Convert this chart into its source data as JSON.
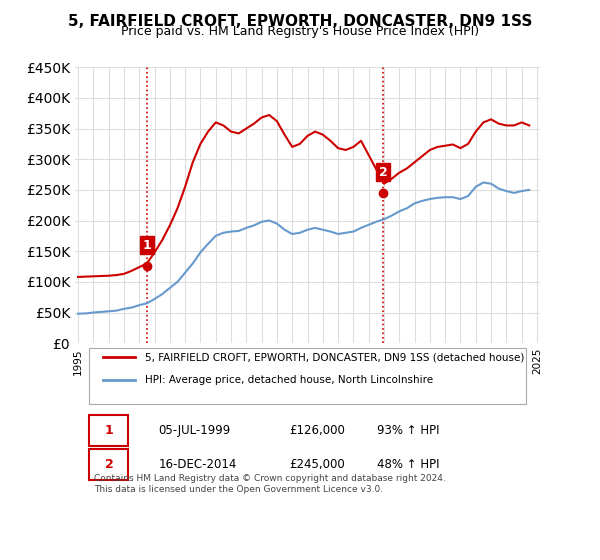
{
  "title": "5, FAIRFIELD CROFT, EPWORTH, DONCASTER, DN9 1SS",
  "subtitle": "Price paid vs. HM Land Registry's House Price Index (HPI)",
  "legend_line1": "5, FAIRFIELD CROFT, EPWORTH, DONCASTER, DN9 1SS (detached house)",
  "legend_line2": "HPI: Average price, detached house, North Lincolnshire",
  "footnote": "Contains HM Land Registry data © Crown copyright and database right 2024.\nThis data is licensed under the Open Government Licence v3.0.",
  "transaction1_label": "1",
  "transaction1_date": "05-JUL-1999",
  "transaction1_price": "£126,000",
  "transaction1_hpi": "93% ↑ HPI",
  "transaction2_label": "2",
  "transaction2_date": "16-DEC-2014",
  "transaction2_price": "£245,000",
  "transaction2_hpi": "48% ↑ HPI",
  "house_color": "#cc0000",
  "hpi_color": "#6699cc",
  "vline_color": "#cc0000",
  "vline_style": "dotted",
  "ylim": [
    0,
    450000
  ],
  "yticks": [
    0,
    50000,
    100000,
    150000,
    200000,
    250000,
    300000,
    350000,
    400000,
    450000
  ],
  "background_color": "#ffffff",
  "grid_color": "#dddddd",
  "hpi_data": {
    "years": [
      1995,
      1995.5,
      1996,
      1996.5,
      1997,
      1997.5,
      1998,
      1998.5,
      1999,
      1999.5,
      2000,
      2000.5,
      2001,
      2001.5,
      2002,
      2002.5,
      2003,
      2003.5,
      2004,
      2004.5,
      2005,
      2005.5,
      2006,
      2006.5,
      2007,
      2007.5,
      2008,
      2008.5,
      2009,
      2009.5,
      2010,
      2010.5,
      2011,
      2011.5,
      2012,
      2012.5,
      2013,
      2013.5,
      2014,
      2014.5,
      2015,
      2015.5,
      2016,
      2016.5,
      2017,
      2017.5,
      2018,
      2018.5,
      2019,
      2019.5,
      2020,
      2020.5,
      2021,
      2021.5,
      2022,
      2022.5,
      2023,
      2023.5,
      2024,
      2024.5
    ],
    "values": [
      48000,
      48500,
      50000,
      51000,
      52000,
      53000,
      56000,
      58000,
      62000,
      65000,
      72000,
      80000,
      90000,
      100000,
      115000,
      130000,
      148000,
      162000,
      175000,
      180000,
      182000,
      183000,
      188000,
      192000,
      198000,
      200000,
      195000,
      185000,
      178000,
      180000,
      185000,
      188000,
      185000,
      182000,
      178000,
      180000,
      182000,
      188000,
      193000,
      198000,
      202000,
      208000,
      215000,
      220000,
      228000,
      232000,
      235000,
      237000,
      238000,
      238000,
      235000,
      240000,
      255000,
      262000,
      260000,
      252000,
      248000,
      245000,
      248000,
      250000
    ]
  },
  "house_data": {
    "years": [
      1995,
      1995.5,
      1996,
      1996.5,
      1997,
      1997.5,
      1998,
      1998.5,
      1999.5,
      2000,
      2000.5,
      2001,
      2001.5,
      2002,
      2002.5,
      2003,
      2003.5,
      2004,
      2004.5,
      2005,
      2005.5,
      2006,
      2006.5,
      2007,
      2007.5,
      2008,
      2008.5,
      2009,
      2009.5,
      2010,
      2010.5,
      2011,
      2011.5,
      2012,
      2012.5,
      2013,
      2013.5,
      2015,
      2015.5,
      2016,
      2016.5,
      2017,
      2017.5,
      2018,
      2018.5,
      2019,
      2019.5,
      2020,
      2020.5,
      2021,
      2021.5,
      2022,
      2022.5,
      2023,
      2023.5,
      2024,
      2024.5
    ],
    "values": [
      108000,
      108500,
      109000,
      109500,
      110000,
      111000,
      113000,
      118000,
      130000,
      148000,
      168000,
      192000,
      220000,
      255000,
      295000,
      325000,
      345000,
      360000,
      355000,
      345000,
      342000,
      350000,
      358000,
      368000,
      372000,
      362000,
      340000,
      320000,
      325000,
      338000,
      345000,
      340000,
      330000,
      318000,
      315000,
      320000,
      330000,
      260000,
      268000,
      278000,
      285000,
      295000,
      305000,
      315000,
      320000,
      322000,
      324000,
      318000,
      325000,
      345000,
      360000,
      365000,
      358000,
      355000,
      355000,
      360000,
      355000
    ]
  },
  "transaction1_year": 1999.51,
  "transaction2_year": 2014.95,
  "transaction1_value": 126000,
  "transaction2_value": 245000,
  "xtick_years": [
    1995,
    1996,
    1997,
    1998,
    1999,
    2000,
    2001,
    2002,
    2003,
    2004,
    2005,
    2006,
    2007,
    2008,
    2009,
    2010,
    2011,
    2012,
    2013,
    2014,
    2015,
    2016,
    2017,
    2018,
    2019,
    2020,
    2021,
    2022,
    2023,
    2024,
    2025
  ]
}
